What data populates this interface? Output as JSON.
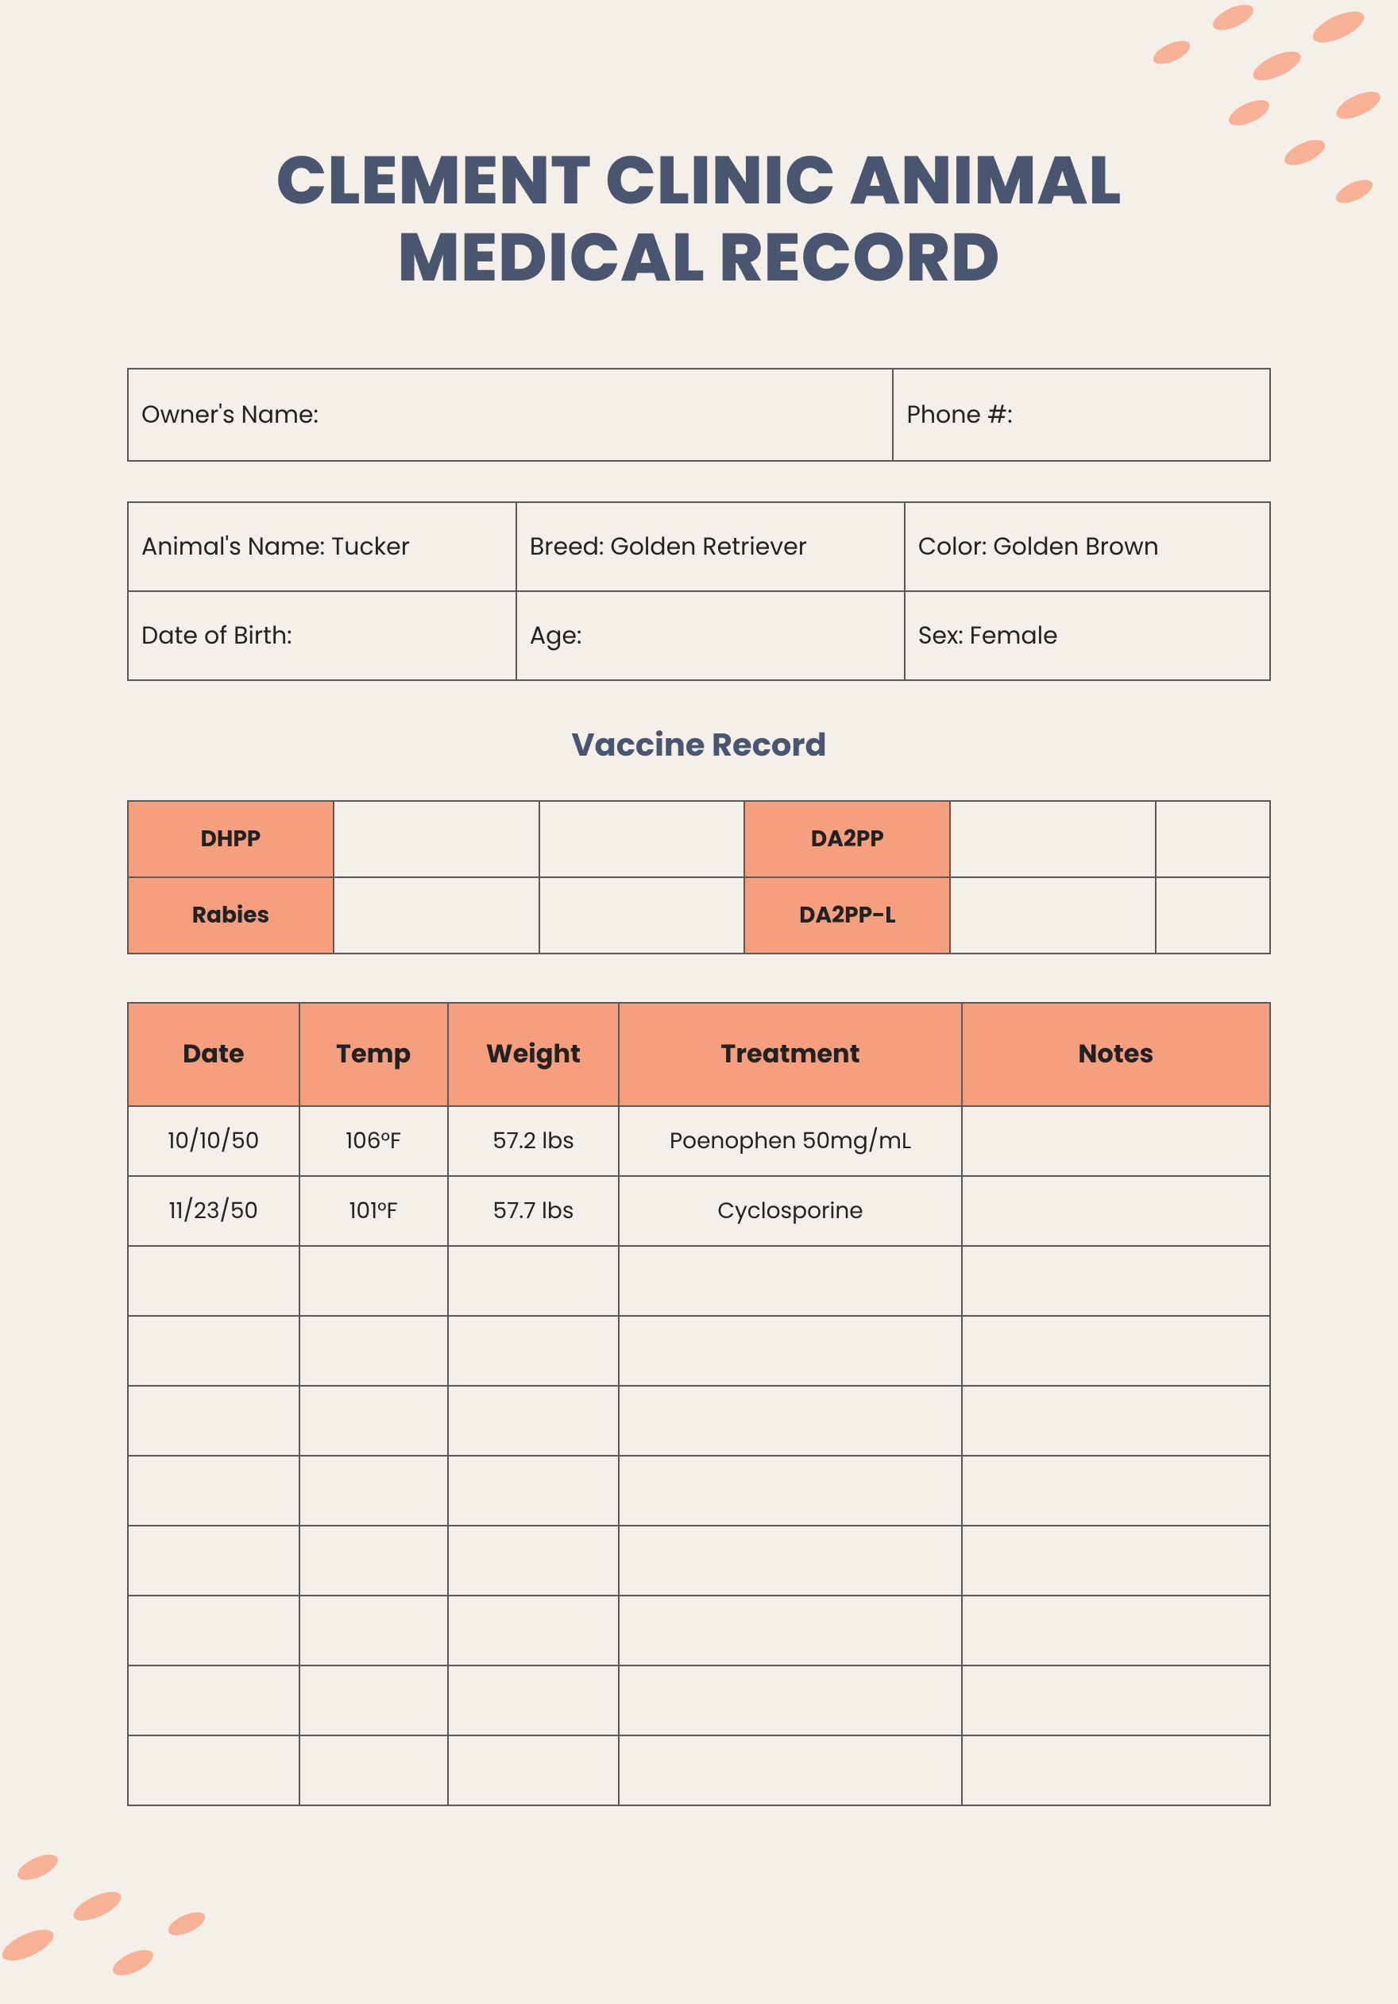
{
  "colors": {
    "background": "#f5efe9",
    "heading": "#4a5670",
    "accent": "#f59f7e",
    "blob": "#f7b196",
    "border": "#5a5a5a",
    "text": "#222222"
  },
  "title": "CLEMENT CLINIC ANIMAL MEDICAL RECORD",
  "owner": {
    "name_label": "Owner's Name:",
    "phone_label": "Phone #:"
  },
  "animal": {
    "name_label": "Animal's Name: Tucker",
    "breed_label": "Breed: Golden Retriever",
    "color_label": "Color: Golden Brown",
    "dob_label": "Date of Birth:",
    "age_label": "Age:",
    "sex_label": "Sex: Female"
  },
  "vaccine_section_title": "Vaccine Record",
  "vaccines": {
    "r1c1": "DHPP",
    "r1c4": "DA2PP",
    "r2c1": "Rabies",
    "r2c4": "DA2PP-L"
  },
  "treatment_headers": {
    "date": "Date",
    "temp": "Temp",
    "weight": "Weight",
    "treatment": "Treatment",
    "notes": "Notes"
  },
  "treatment_rows": [
    {
      "date": "10/10/50",
      "temp": "106°F",
      "weight": "57.2 lbs",
      "treatment": "Poenophen 50mg/mL",
      "notes": ""
    },
    {
      "date": "11/23/50",
      "temp": "101°F",
      "weight": "57.7 lbs",
      "treatment": "Cyclosporine",
      "notes": ""
    },
    {
      "date": "",
      "temp": "",
      "weight": "",
      "treatment": "",
      "notes": ""
    },
    {
      "date": "",
      "temp": "",
      "weight": "",
      "treatment": "",
      "notes": ""
    },
    {
      "date": "",
      "temp": "",
      "weight": "",
      "treatment": "",
      "notes": ""
    },
    {
      "date": "",
      "temp": "",
      "weight": "",
      "treatment": "",
      "notes": ""
    },
    {
      "date": "",
      "temp": "",
      "weight": "",
      "treatment": "",
      "notes": ""
    },
    {
      "date": "",
      "temp": "",
      "weight": "",
      "treatment": "",
      "notes": ""
    },
    {
      "date": "",
      "temp": "",
      "weight": "",
      "treatment": "",
      "notes": ""
    },
    {
      "date": "",
      "temp": "",
      "weight": "",
      "treatment": "",
      "notes": ""
    }
  ]
}
